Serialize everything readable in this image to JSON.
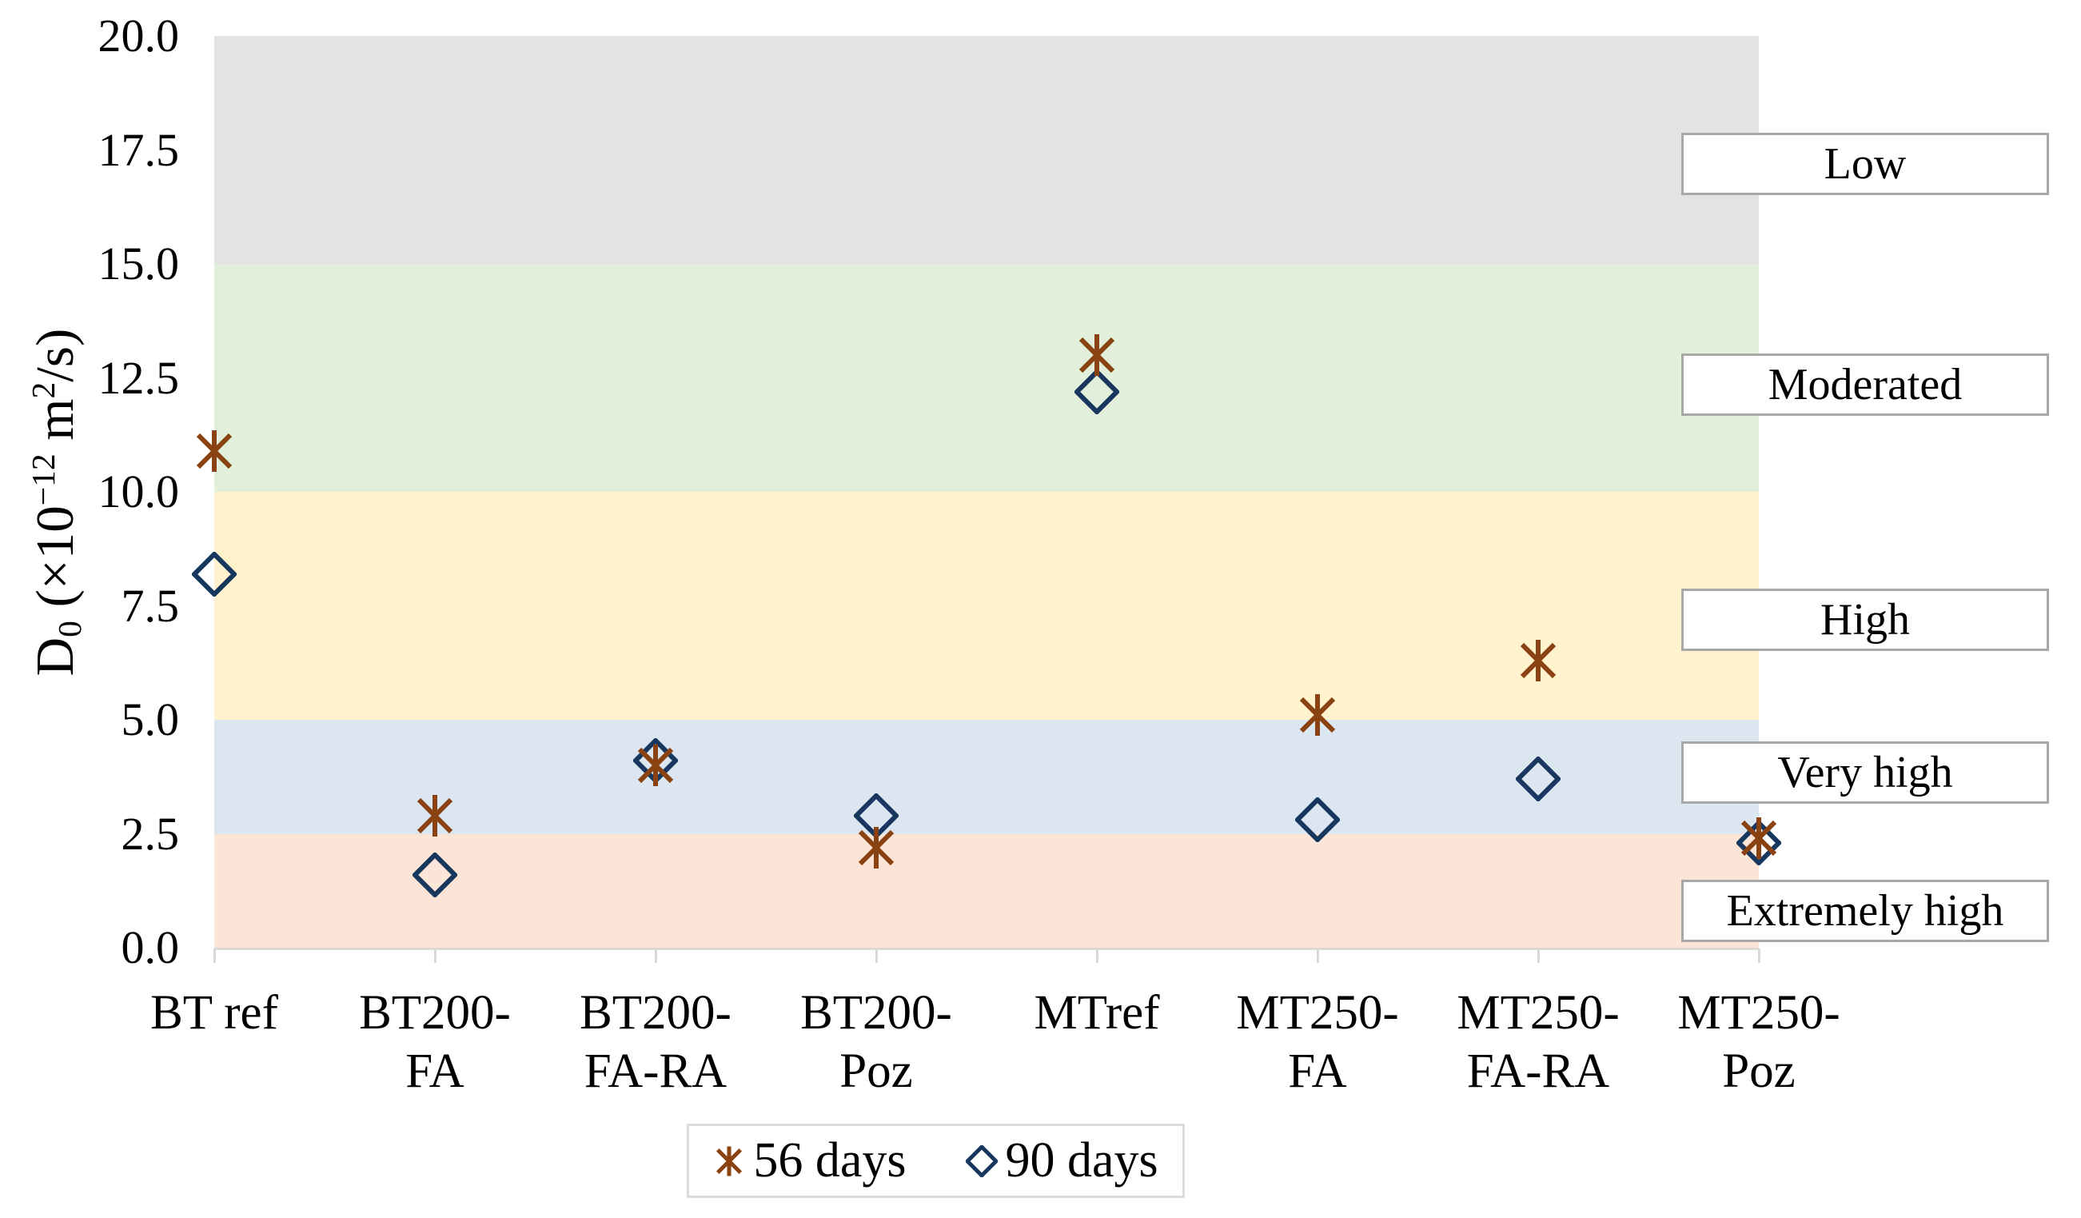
{
  "chart_data": {
    "type": "scatter",
    "title": "",
    "xlabel": "",
    "ylabel": "D0 (×10−12 m2/s)",
    "ylabel_parts": [
      {
        "t": "D"
      },
      {
        "t": "0",
        "pos": "sub"
      },
      {
        "t": " (×10"
      },
      {
        "t": "−12",
        "pos": "sup"
      },
      {
        "t": " m"
      },
      {
        "t": "2",
        "pos": "sup"
      },
      {
        "t": "/s)"
      }
    ],
    "ylim": [
      0,
      20
    ],
    "grid": false,
    "y_ticks": [
      {
        "value": 0,
        "label": "0.0"
      },
      {
        "value": 2.5,
        "label": "2.5"
      },
      {
        "value": 5,
        "label": "5.0"
      },
      {
        "value": 7.5,
        "label": "7.5"
      },
      {
        "value": 10,
        "label": "10.0"
      },
      {
        "value": 12.5,
        "label": "12.5"
      },
      {
        "value": 15,
        "label": "15.0"
      },
      {
        "value": 17.5,
        "label": "17.5"
      },
      {
        "value": 20,
        "label": "20.0"
      }
    ],
    "categories": [
      "BT ref",
      "BT200-FA",
      "BT200-FA-RA",
      "BT200-Poz",
      "MTref",
      "MT250-FA",
      "MT250-FA-RA",
      "MT250-Poz"
    ],
    "category_label_lines": [
      [
        "BT ref"
      ],
      [
        "BT200-",
        "FA"
      ],
      [
        "BT200-",
        "FA-RA"
      ],
      [
        "BT200-",
        "Poz"
      ],
      [
        "MTref"
      ],
      [
        "MT250-",
        "FA"
      ],
      [
        "MT250-",
        "FA-RA"
      ],
      [
        "MT250-",
        "Poz"
      ]
    ],
    "series": [
      {
        "name": "56 days",
        "marker": "asterisk",
        "color": "#8A4212",
        "values": [
          10.9,
          2.9,
          4.0,
          2.2,
          13.0,
          5.1,
          6.3,
          2.4
        ]
      },
      {
        "name": "90 days",
        "marker": "diamond",
        "color": "#17375E",
        "values": [
          8.2,
          1.6,
          4.1,
          2.9,
          12.2,
          2.8,
          3.7,
          2.3
        ]
      }
    ],
    "bands": [
      {
        "range": [
          15,
          20
        ],
        "color": "#E3E3E3",
        "label": "Low"
      },
      {
        "range": [
          10,
          15
        ],
        "color": "#E2EFDA",
        "label": "Moderated"
      },
      {
        "range": [
          5,
          10
        ],
        "color": "#FFF2CC",
        "label": "High"
      },
      {
        "range": [
          2.5,
          5
        ],
        "color": "#DCE6F1",
        "label": "Very high"
      },
      {
        "range": [
          0,
          2.5
        ],
        "color": "#FCE4D6",
        "label": "Extremely high"
      }
    ],
    "zone_labels": [
      {
        "label": "Low",
        "y_value": 17.2
      },
      {
        "label": "Moderated",
        "y_value": 12.35
      },
      {
        "label": "High",
        "y_value": 7.2
      },
      {
        "label": "Very high",
        "y_value": 3.85
      },
      {
        "label": "Extremely high",
        "y_value": 0.8
      }
    ],
    "legend": {
      "position": "bottom-center",
      "items": [
        "56 days",
        "90 days"
      ]
    }
  }
}
